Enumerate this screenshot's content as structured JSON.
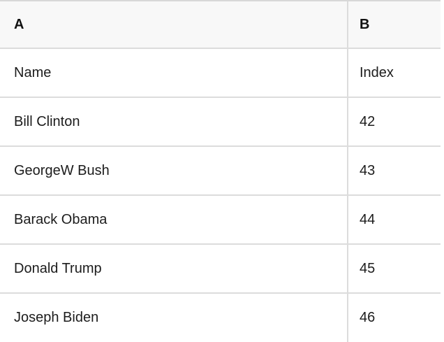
{
  "table": {
    "columns": [
      {
        "id": "A",
        "label": "A"
      },
      {
        "id": "B",
        "label": "B"
      }
    ],
    "field_row": {
      "name": "Name",
      "index": "Index"
    },
    "rows": [
      {
        "name": "Bill Clinton",
        "index": "42"
      },
      {
        "name": "GeorgeW Bush",
        "index": "43"
      },
      {
        "name": "Barack Obama",
        "index": "44"
      },
      {
        "name": "Donald Trump",
        "index": "45"
      },
      {
        "name": "Joseph Biden",
        "index": "46"
      }
    ]
  },
  "colors": {
    "header_background": "#f8f8f8",
    "row_background": "#ffffff",
    "border": "#dcdcdc",
    "text": "#1c1c1c"
  }
}
